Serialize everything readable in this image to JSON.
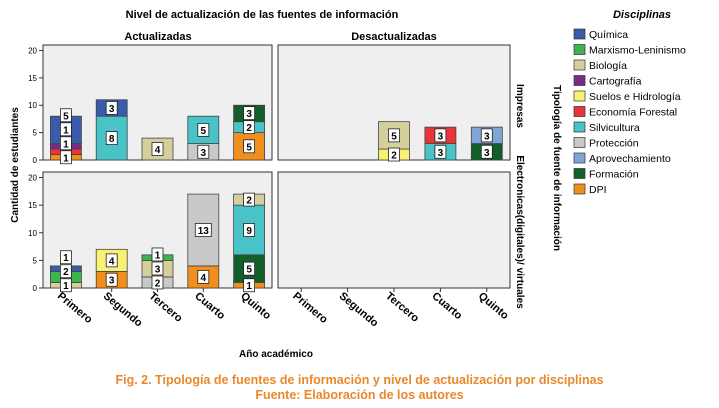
{
  "chart_data": {
    "type": "bar",
    "title": "Nivel de actualización de las fuentes de información",
    "column_labels": [
      "Actualizadas",
      "Desactualizadas"
    ],
    "row_labels": [
      "Impresas",
      "Electronicas(digitales)/ virtuales"
    ],
    "row_axis_title": "Tipología de fuente de información",
    "xlabel": "Año académico",
    "ylabel": "Cantidad de estudiantes",
    "ylim": [
      0,
      21
    ],
    "yticks": [
      0,
      5,
      10,
      15,
      20
    ],
    "categories": [
      "Primero",
      "Segundo",
      "Tercero",
      "Cuarto",
      "Quinto"
    ],
    "legend_title": "Disciplinas",
    "legend": [
      {
        "name": "Química",
        "color": "#3a5bab"
      },
      {
        "name": "Marxismo-Leninismo",
        "color": "#3cb64a"
      },
      {
        "name": "Biología",
        "color": "#d5cf9d"
      },
      {
        "name": "Cartografía",
        "color": "#7a2a85"
      },
      {
        "name": "Suelos e Hidrología",
        "color": "#f7f272"
      },
      {
        "name": "Economía Forestal",
        "color": "#e8353a"
      },
      {
        "name": "Silvicultura",
        "color": "#48c3c7"
      },
      {
        "name": "Protección",
        "color": "#c9c9c9"
      },
      {
        "name": "Aprovechamiento",
        "color": "#7ea6d6"
      },
      {
        "name": "Formación",
        "color": "#135f2a"
      },
      {
        "name": "DPI",
        "color": "#f28f1c"
      }
    ],
    "panels": [
      {
        "id": "impresas-actualizadas",
        "bars": [
          {
            "category": "Primero",
            "segments": [
              {
                "d": "DPI",
                "v": 1
              },
              {
                "d": "Economía Forestal",
                "v": 1
              },
              {
                "d": "Cartografía",
                "v": 1
              },
              {
                "d": "Química",
                "v": 5
              }
            ]
          },
          {
            "category": "Segundo",
            "segments": [
              {
                "d": "Silvicultura",
                "v": 8
              },
              {
                "d": "Química",
                "v": 3
              }
            ]
          },
          {
            "category": "Tercero",
            "segments": [
              {
                "d": "Biología",
                "v": 4
              }
            ]
          },
          {
            "category": "Cuarto",
            "segments": [
              {
                "d": "Protección",
                "v": 3
              },
              {
                "d": "Silvicultura",
                "v": 5
              }
            ]
          },
          {
            "category": "Quinto",
            "segments": [
              {
                "d": "DPI",
                "v": 5
              },
              {
                "d": "Silvicultura",
                "v": 2
              },
              {
                "d": "Formación",
                "v": 3
              }
            ]
          }
        ]
      },
      {
        "id": "impresas-desactualizadas",
        "bars": [
          {
            "category": "Tercero",
            "segments": [
              {
                "d": "Suelos e Hidrología",
                "v": 2
              },
              {
                "d": "Biología",
                "v": 5
              }
            ]
          },
          {
            "category": "Cuarto",
            "segments": [
              {
                "d": "Silvicultura",
                "v": 3
              },
              {
                "d": "Economía Forestal",
                "v": 3
              }
            ]
          },
          {
            "category": "Quinto",
            "segments": [
              {
                "d": "Formación",
                "v": 3
              },
              {
                "d": "Aprovechamiento",
                "v": 3
              }
            ]
          }
        ]
      },
      {
        "id": "electronicas-actualizadas",
        "bars": [
          {
            "category": "Primero",
            "segments": [
              {
                "d": "Biología",
                "v": 1
              },
              {
                "d": "Marxismo-Leninismo",
                "v": 2
              },
              {
                "d": "Química",
                "v": 1
              }
            ]
          },
          {
            "category": "Segundo",
            "segments": [
              {
                "d": "DPI",
                "v": 3
              },
              {
                "d": "Suelos e Hidrología",
                "v": 4
              }
            ]
          },
          {
            "category": "Tercero",
            "segments": [
              {
                "d": "Protección",
                "v": 2
              },
              {
                "d": "Biología",
                "v": 3
              },
              {
                "d": "Marxismo-Leninismo",
                "v": 1
              }
            ]
          },
          {
            "category": "Cuarto",
            "segments": [
              {
                "d": "DPI",
                "v": 4
              },
              {
                "d": "Protección",
                "v": 13
              }
            ]
          },
          {
            "category": "Quinto",
            "segments": [
              {
                "d": "DPI",
                "v": 1
              },
              {
                "d": "Formación",
                "v": 5
              },
              {
                "d": "Silvicultura",
                "v": 9
              },
              {
                "d": "Biología",
                "v": 2
              }
            ]
          }
        ]
      },
      {
        "id": "electronicas-desactualizadas",
        "bars": []
      }
    ]
  },
  "caption": {
    "line1": "Fig. 2. Tipología de fuentes de información y nivel de actualización por disciplinas",
    "line2": "Fuente: Elaboración de los autores"
  }
}
